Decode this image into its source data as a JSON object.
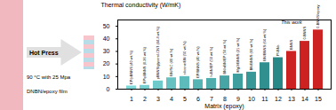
{
  "chart_data": [
    {
      "type": "bar",
      "categories": [
        "1",
        "2",
        "3",
        "4",
        "5",
        "6",
        "7",
        "8",
        "9",
        "10",
        "11",
        "12",
        "13",
        "14",
        "15"
      ],
      "values": [
        2.5,
        3.0,
        6.5,
        9.0,
        10.0,
        7.5,
        8.5,
        10.5,
        12.0,
        13.5,
        21,
        25,
        30,
        38,
        47
      ],
      "colors": [
        "#7dd8d8",
        "#75d1d1",
        "#6ecaca",
        "#66c2c2",
        "#5ebbbb",
        "#56b4b4",
        "#4fadad",
        "#47a5a5",
        "#3f9e9e",
        "#389797",
        "#309090",
        "#288888",
        "#cc2222",
        "#cc2222",
        "#cc2222"
      ],
      "xlabel": "Matrix (epoxy)",
      "ylabel": "Thermal conductivity (W/mK)",
      "ylim": [
        0,
        55
      ],
      "yticks": [
        0,
        10,
        20,
        30,
        40,
        50
      ],
      "grid": false,
      "annotations": [
        {
          "category": "1",
          "text": "EP/pBNNS (40 wt.%)"
        },
        {
          "category": "2",
          "text": "EP/pBNNS (0.26 wt.%)"
        },
        {
          "category": "3",
          "text": "pBNNS/glycerol-CNT (44.4 wt.%)"
        },
        {
          "category": "4",
          "text": "BN/SiC (40 wt.%)"
        },
        {
          "category": "5",
          "text": "silicone/BN (50 wt.%)"
        },
        {
          "category": "6",
          "text": "EP/BNNS (40 wt.%)"
        },
        {
          "category": "7",
          "text": "h-BN/EP (50 wt.%)"
        },
        {
          "category": "8",
          "text": "BN/nBN/EP (50 wt.%)"
        },
        {
          "category": "9",
          "text": "MgO/BNNS (21 wt.%)"
        },
        {
          "category": "10",
          "text": "BN/BNNS (60 wt.%)"
        },
        {
          "category": "11",
          "text": "BN/BNNS (64 wt.%)"
        },
        {
          "category": "12",
          "text": "PI-BNs"
        },
        {
          "category": "13",
          "text": "BNNS"
        },
        {
          "category": "14",
          "text": "0-BNNS"
        },
        {
          "category": "15",
          "text": "0-BNNS/epoxy"
        },
        {
          "text": "This work"
        }
      ]
    },
    {
      "type": "schematic",
      "annotations": [
        {
          "text": "Hot Press"
        },
        {
          "text": "90 °C with 25 Mpa"
        },
        {
          "text": "DNBN/epoxy film"
        }
      ]
    }
  ]
}
